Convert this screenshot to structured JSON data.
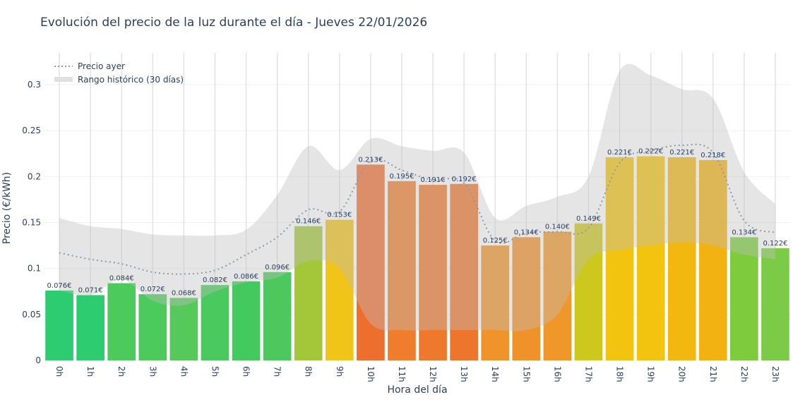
{
  "chart_data": {
    "type": "bar",
    "title": "Evolución del precio de la luz durante el día - Jueves 22/01/2026",
    "xlabel": "Hora del día",
    "ylabel": "Precio (€/kWh)",
    "ylim": [
      0,
      0.33
    ],
    "yticks": [
      0,
      0.05,
      0.1,
      0.15,
      0.2,
      0.25,
      0.3
    ],
    "ytick_labels": [
      "0",
      "0.05",
      "0.1",
      "0.15",
      "0.2",
      "0.25",
      "0.3"
    ],
    "grid": true,
    "legend_position": "top-left",
    "categories": [
      "0h",
      "1h",
      "2h",
      "3h",
      "4h",
      "5h",
      "6h",
      "7h",
      "8h",
      "9h",
      "10h",
      "11h",
      "12h",
      "13h",
      "14h",
      "15h",
      "16h",
      "17h",
      "18h",
      "19h",
      "20h",
      "21h",
      "22h",
      "23h"
    ],
    "values": [
      0.076,
      0.071,
      0.084,
      0.072,
      0.068,
      0.082,
      0.086,
      0.096,
      0.146,
      0.153,
      0.213,
      0.195,
      0.191,
      0.192,
      0.125,
      0.134,
      0.14,
      0.149,
      0.221,
      0.222,
      0.221,
      0.218,
      0.134,
      0.122
    ],
    "value_labels": [
      "0.076€",
      "0.071€",
      "0.084€",
      "0.072€",
      "0.068€",
      "0.082€",
      "0.086€",
      "0.096€",
      "0.146€",
      "0.153€",
      "0.213€",
      "0.195€",
      "0.191€",
      "0.192€",
      "0.125€",
      "0.134€",
      "0.140€",
      "0.149€",
      "0.221€",
      "0.222€",
      "0.221€",
      "0.218€",
      "0.134€",
      "0.122€"
    ],
    "bar_colors": [
      "#2ecc71",
      "#2ecc71",
      "#4ccb5c",
      "#4ccb5c",
      "#55c95a",
      "#49c95e",
      "#44c95e",
      "#4cc85c",
      "#a4c639",
      "#f0c419",
      "#ee6e2d",
      "#ef7d2c",
      "#ee782c",
      "#ee752c",
      "#f0932a",
      "#f0922a",
      "#f0972a",
      "#cdc81e",
      "#f2c30f",
      "#f2c40f",
      "#f2b80f",
      "#f2b212",
      "#7ecb3e",
      "#7ccb46"
    ],
    "series": [
      {
        "name": "Precio ayer",
        "type": "line",
        "style": "dotted",
        "color": "#8a9bab",
        "values": [
          0.117,
          0.11,
          0.105,
          0.096,
          0.094,
          0.098,
          0.115,
          0.134,
          0.164,
          0.162,
          0.217,
          0.207,
          0.196,
          0.193,
          0.13,
          0.139,
          0.14,
          0.144,
          0.215,
          0.228,
          0.234,
          0.226,
          0.152,
          0.139
        ]
      },
      {
        "name": "Rango histórico (30 días)",
        "type": "band",
        "color": "#d3d3d3",
        "upper": [
          0.155,
          0.146,
          0.143,
          0.137,
          0.136,
          0.136,
          0.142,
          0.18,
          0.233,
          0.207,
          0.241,
          0.233,
          0.228,
          0.226,
          0.155,
          0.168,
          0.178,
          0.2,
          0.315,
          0.31,
          0.295,
          0.285,
          0.205,
          0.17
        ],
        "lower": [
          0.076,
          0.071,
          0.088,
          0.065,
          0.06,
          0.075,
          0.085,
          0.09,
          0.108,
          0.1,
          0.04,
          0.033,
          0.033,
          0.033,
          0.033,
          0.033,
          0.05,
          0.11,
          0.12,
          0.125,
          0.128,
          0.125,
          0.115,
          0.11
        ]
      }
    ]
  }
}
